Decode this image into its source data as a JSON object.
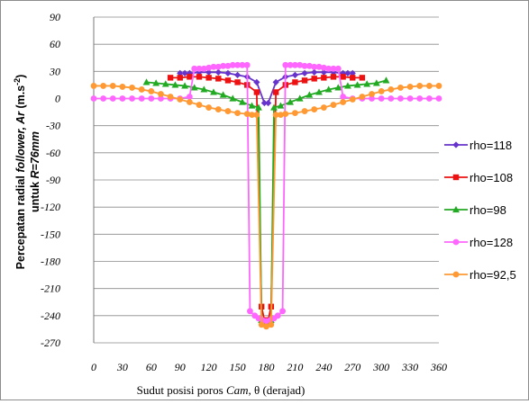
{
  "chart_data": {
    "type": "line",
    "ylabel_line1_prefix": "Percepatan radial ",
    "ylabel_line1_italic": "follower, Ar",
    "ylabel_line1_unit": " (m.s",
    "ylabel_line1_exp": "-2",
    "ylabel_line1_close": ")",
    "ylabel_line2_prefix": "untuk ",
    "ylabel_line2_italic": "R=76mm",
    "xlabel_prefix": "Sudut posisi poros ",
    "xlabel_italic": "Cam",
    "xlabel_suffix": ", θ (derajad)",
    "xlim": [
      0,
      360
    ],
    "ylim": [
      -270,
      90
    ],
    "xticks": [
      "0",
      "30",
      "60",
      "90",
      "120",
      "150",
      "180",
      "210",
      "240",
      "270",
      "300",
      "330",
      "360"
    ],
    "yticks": [
      "90",
      "60",
      "30",
      "0",
      "-30",
      "-60",
      "-90",
      "-120",
      "-150",
      "-180",
      "-210",
      "-240",
      "-270"
    ],
    "grid": "horizontal",
    "legend_position": "right",
    "series": [
      {
        "name": "rho=118",
        "color": "#6633cc",
        "marker": "diamond",
        "points": [
          [
            90,
            28
          ],
          [
            95,
            28
          ],
          [
            100,
            28
          ],
          [
            110,
            29
          ],
          [
            120,
            29
          ],
          [
            130,
            29
          ],
          [
            140,
            28
          ],
          [
            150,
            26
          ],
          [
            160,
            24
          ],
          [
            170,
            18
          ],
          [
            178,
            -5
          ],
          [
            182,
            -5
          ],
          [
            190,
            18
          ],
          [
            200,
            24
          ],
          [
            210,
            26
          ],
          [
            220,
            28
          ],
          [
            230,
            29
          ],
          [
            240,
            29
          ],
          [
            250,
            29
          ],
          [
            260,
            28
          ],
          [
            265,
            28
          ],
          [
            270,
            28
          ]
        ]
      },
      {
        "name": "rho=108",
        "color": "#ee1111",
        "marker": "square",
        "points": [
          [
            80,
            23
          ],
          [
            90,
            23
          ],
          [
            100,
            24
          ],
          [
            110,
            24
          ],
          [
            120,
            23
          ],
          [
            130,
            22
          ],
          [
            140,
            20
          ],
          [
            150,
            18
          ],
          [
            160,
            15
          ],
          [
            170,
            7
          ],
          [
            175,
            -230
          ],
          [
            178,
            -245
          ],
          [
            182,
            -245
          ],
          [
            185,
            -230
          ],
          [
            190,
            7
          ],
          [
            200,
            15
          ],
          [
            210,
            18
          ],
          [
            220,
            20
          ],
          [
            230,
            22
          ],
          [
            240,
            23
          ],
          [
            250,
            24
          ],
          [
            260,
            24
          ],
          [
            270,
            23
          ],
          [
            280,
            23
          ]
        ]
      },
      {
        "name": "rho=98",
        "color": "#22aa22",
        "marker": "triangle",
        "points": [
          [
            55,
            18
          ],
          [
            65,
            17
          ],
          [
            75,
            16
          ],
          [
            85,
            15
          ],
          [
            95,
            14
          ],
          [
            105,
            12
          ],
          [
            115,
            10
          ],
          [
            125,
            7
          ],
          [
            135,
            4
          ],
          [
            145,
            0
          ],
          [
            155,
            -4
          ],
          [
            165,
            -8
          ],
          [
            172,
            -10
          ],
          [
            175,
            -245
          ],
          [
            178,
            -248
          ],
          [
            182,
            -248
          ],
          [
            185,
            -245
          ],
          [
            188,
            -10
          ],
          [
            195,
            -8
          ],
          [
            205,
            -4
          ],
          [
            215,
            0
          ],
          [
            225,
            4
          ],
          [
            235,
            7
          ],
          [
            245,
            10
          ],
          [
            255,
            12
          ],
          [
            265,
            14
          ],
          [
            275,
            15
          ],
          [
            285,
            16
          ],
          [
            295,
            17
          ],
          [
            305,
            20
          ]
        ]
      },
      {
        "name": "rho=128",
        "color": "#ff66ff",
        "marker": "circle",
        "points": [
          [
            0,
            0
          ],
          [
            10,
            0
          ],
          [
            20,
            0
          ],
          [
            30,
            0
          ],
          [
            40,
            0
          ],
          [
            50,
            0
          ],
          [
            60,
            0
          ],
          [
            70,
            0
          ],
          [
            80,
            0
          ],
          [
            90,
            0
          ],
          [
            100,
            2
          ],
          [
            105,
            33
          ],
          [
            110,
            33
          ],
          [
            115,
            33
          ],
          [
            120,
            34
          ],
          [
            125,
            35
          ],
          [
            130,
            35
          ],
          [
            135,
            36
          ],
          [
            140,
            36
          ],
          [
            145,
            37
          ],
          [
            150,
            37
          ],
          [
            155,
            37
          ],
          [
            160,
            37
          ],
          [
            163,
            -235
          ],
          [
            168,
            -240
          ],
          [
            172,
            -243
          ],
          [
            176,
            -245
          ],
          [
            180,
            -246
          ],
          [
            184,
            -245
          ],
          [
            188,
            -243
          ],
          [
            192,
            -240
          ],
          [
            197,
            -235
          ],
          [
            200,
            37
          ],
          [
            205,
            37
          ],
          [
            210,
            37
          ],
          [
            215,
            37
          ],
          [
            220,
            36
          ],
          [
            225,
            36
          ],
          [
            230,
            35
          ],
          [
            235,
            35
          ],
          [
            240,
            34
          ],
          [
            245,
            33
          ],
          [
            250,
            33
          ],
          [
            255,
            33
          ],
          [
            260,
            2
          ],
          [
            270,
            0
          ],
          [
            280,
            0
          ],
          [
            290,
            0
          ],
          [
            300,
            0
          ],
          [
            310,
            0
          ],
          [
            320,
            0
          ],
          [
            330,
            0
          ],
          [
            340,
            0
          ],
          [
            350,
            0
          ],
          [
            360,
            0
          ]
        ]
      },
      {
        "name": "rho=92,5",
        "color": "#ff9933",
        "marker": "circle",
        "points": [
          [
            0,
            14
          ],
          [
            10,
            14
          ],
          [
            20,
            14
          ],
          [
            30,
            13
          ],
          [
            40,
            12
          ],
          [
            50,
            10
          ],
          [
            60,
            8
          ],
          [
            70,
            5
          ],
          [
            80,
            2
          ],
          [
            90,
            -1
          ],
          [
            100,
            -4
          ],
          [
            110,
            -7
          ],
          [
            120,
            -10
          ],
          [
            130,
            -12
          ],
          [
            140,
            -14
          ],
          [
            150,
            -16
          ],
          [
            160,
            -17
          ],
          [
            165,
            -18
          ],
          [
            170,
            -18
          ],
          [
            175,
            -250
          ],
          [
            180,
            -252
          ],
          [
            185,
            -250
          ],
          [
            190,
            -18
          ],
          [
            195,
            -18
          ],
          [
            200,
            -17
          ],
          [
            210,
            -16
          ],
          [
            220,
            -14
          ],
          [
            230,
            -12
          ],
          [
            240,
            -10
          ],
          [
            250,
            -7
          ],
          [
            260,
            -4
          ],
          [
            270,
            -1
          ],
          [
            280,
            2
          ],
          [
            290,
            5
          ],
          [
            300,
            8
          ],
          [
            310,
            10
          ],
          [
            320,
            12
          ],
          [
            330,
            13
          ],
          [
            340,
            14
          ],
          [
            350,
            14
          ],
          [
            360,
            14
          ]
        ]
      }
    ]
  }
}
